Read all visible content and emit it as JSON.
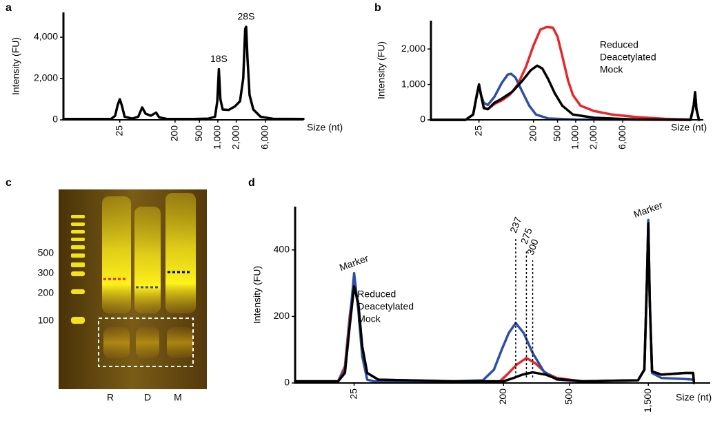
{
  "chart_data": [
    {
      "type": "line",
      "panel_label": "a",
      "y_label": "Intensity (FU)",
      "x_label": "Size (nt)",
      "x_scale": "log",
      "xlim": [
        3,
        25000
      ],
      "ylim": [
        0,
        5200
      ],
      "xticks": [
        25,
        200,
        500,
        {
          "value": 1000,
          "label": "1,000"
        },
        {
          "value": 2000,
          "label": "2,000"
        },
        {
          "value": 6000,
          "label": "6,000"
        }
      ],
      "yticks": [
        0,
        {
          "value": 2000,
          "label": "2,000"
        },
        {
          "value": 4000,
          "label": "4,000"
        }
      ],
      "grid": false,
      "series": [
        {
          "color": "#000000",
          "x": [
            3,
            10,
            18,
            21,
            23,
            25,
            27,
            30,
            40,
            50,
            58,
            66,
            80,
            98,
            110,
            150,
            400,
            700,
            900,
            980,
            1040,
            1100,
            1200,
            1500,
            1900,
            2300,
            2600,
            2800,
            2900,
            3050,
            3300,
            3800,
            5000,
            8000,
            25000
          ],
          "values": [
            40,
            40,
            40,
            200,
            700,
            1000,
            700,
            150,
            60,
            150,
            600,
            300,
            200,
            350,
            120,
            40,
            40,
            60,
            150,
            900,
            2450,
            1000,
            500,
            480,
            650,
            900,
            2000,
            4400,
            4500,
            3000,
            1200,
            500,
            150,
            50,
            40
          ]
        }
      ],
      "annotations": [
        {
          "text": "18S",
          "x": 1040
        },
        {
          "text": "28S",
          "x": 2900
        }
      ]
    },
    {
      "type": "line",
      "panel_label": "b",
      "y_label": "Intensity (FU)",
      "x_label": "Size (nt)",
      "x_scale": "log",
      "xlim": [
        4,
        130000
      ],
      "ylim": [
        0,
        2800
      ],
      "xticks": [
        25,
        200,
        500,
        {
          "value": 1000,
          "label": "1,000"
        },
        {
          "value": 2000,
          "label": "2,000"
        },
        {
          "value": 6000,
          "label": "6,000"
        }
      ],
      "yticks": [
        0,
        {
          "value": 1000,
          "label": "1,000"
        },
        {
          "value": 2000,
          "label": "2,000"
        }
      ],
      "grid": false,
      "legend": "upper right",
      "series": [
        {
          "name": "Reduced",
          "color": "#e8262b",
          "x": [
            4,
            15,
            20,
            23,
            25,
            27,
            30,
            35,
            45,
            60,
            80,
            110,
            150,
            200,
            260,
            330,
            420,
            500,
            600,
            750,
            900,
            1200,
            2000,
            4000,
            10000,
            30000,
            80000,
            90000,
            95000,
            100000,
            110000
          ],
          "values": [
            0,
            0,
            150,
            700,
            1000,
            700,
            350,
            300,
            450,
            550,
            700,
            1000,
            1500,
            2100,
            2550,
            2620,
            2600,
            2350,
            1800,
            1100,
            700,
            400,
            250,
            150,
            80,
            30,
            10,
            400,
            780,
            300,
            0
          ]
        },
        {
          "name": "Deacetylated",
          "color": "#2e4fa3",
          "x": [
            4,
            15,
            20,
            23,
            25,
            27,
            30,
            35,
            45,
            60,
            75,
            85,
            100,
            130,
            170,
            220,
            350,
            1000,
            80000,
            90000,
            95000,
            100000,
            110000
          ],
          "values": [
            0,
            0,
            150,
            700,
            980,
            700,
            480,
            420,
            650,
            1050,
            1280,
            1300,
            1200,
            800,
            400,
            150,
            40,
            10,
            0,
            380,
            760,
            300,
            0
          ]
        },
        {
          "name": "Mock",
          "color": "#000000",
          "x": [
            4,
            15,
            20,
            23,
            25,
            27,
            30,
            35,
            45,
            60,
            90,
            130,
            180,
            230,
            280,
            350,
            450,
            600,
            900,
            2000,
            10000,
            80000,
            90000,
            95000,
            100000,
            110000
          ],
          "values": [
            0,
            0,
            150,
            700,
            1000,
            700,
            330,
            300,
            480,
            600,
            800,
            1100,
            1400,
            1530,
            1450,
            1150,
            750,
            400,
            150,
            60,
            10,
            0,
            400,
            780,
            300,
            0
          ]
        }
      ]
    },
    {
      "type": "line",
      "panel_label": "d",
      "y_label": "Intensity (FU)",
      "x_label": "Size (nt)",
      "x_scale": "log",
      "xlim": [
        11,
        3550
      ],
      "ylim": [
        0,
        530
      ],
      "xticks": [
        25,
        200,
        500,
        {
          "value": 1500,
          "label": "1,500"
        }
      ],
      "yticks": [
        0,
        200,
        400
      ],
      "grid": false,
      "legend": "center left",
      "series": [
        {
          "name": "Reduced",
          "color": "#e8262b",
          "x": [
            11,
            20,
            22,
            23.5,
            25,
            26.5,
            28,
            30,
            35,
            100,
            190,
            210,
            240,
            275,
            310,
            360,
            420,
            600,
            1300,
            1420,
            1470,
            1500,
            1530,
            1580,
            1800,
            2500,
            2800,
            2830
          ],
          "values": [
            5,
            5,
            50,
            200,
            300,
            230,
            100,
            30,
            10,
            5,
            5,
            25,
            55,
            75,
            60,
            30,
            15,
            5,
            8,
            40,
            300,
            485,
            250,
            35,
            25,
            30,
            30,
            0
          ]
        },
        {
          "name": "Deacetylated",
          "color": "#2e4fa3",
          "x": [
            11,
            20,
            22,
            23.5,
            25,
            26.5,
            28,
            30,
            33,
            100,
            150,
            175,
            195,
            215,
            237,
            265,
            300,
            350,
            420,
            600,
            1300,
            1420,
            1470,
            1500,
            1530,
            1580,
            1800,
            2500,
            2800
          ],
          "values": [
            5,
            5,
            40,
            180,
            330,
            220,
            80,
            10,
            5,
            5,
            8,
            40,
            100,
            150,
            180,
            150,
            90,
            35,
            10,
            5,
            8,
            40,
            300,
            490,
            250,
            30,
            15,
            12,
            10
          ]
        },
        {
          "name": "Mock",
          "color": "#000000",
          "x": [
            11,
            20,
            22,
            23.5,
            25,
            26.5,
            28,
            30,
            35,
            100,
            200,
            230,
            260,
            300,
            360,
            420,
            600,
            1300,
            1420,
            1470,
            1500,
            1530,
            1580,
            1800,
            2500,
            2800,
            2830
          ],
          "values": [
            5,
            5,
            30,
            170,
            290,
            240,
            110,
            30,
            10,
            5,
            5,
            15,
            25,
            32,
            25,
            12,
            5,
            8,
            40,
            300,
            480,
            250,
            35,
            25,
            30,
            30,
            0
          ]
        }
      ],
      "annotations": [
        {
          "text": "Marker",
          "x": 25
        },
        {
          "text": "Marker",
          "x": 1500
        }
      ],
      "peak_markers": [
        {
          "x": 237,
          "color": "#2e4fa3"
        },
        {
          "x": 275,
          "color": "#e8262b"
        },
        {
          "x": 300,
          "color": "#000000"
        }
      ]
    }
  ],
  "gel": {
    "panel_label": "c",
    "size_labels": [
      "500",
      "300",
      "200",
      "100"
    ],
    "lane_labels": [
      {
        "text": "R",
        "color": "#e8262b"
      },
      {
        "text": "D",
        "color": "#2e4fa3"
      },
      {
        "text": "M",
        "color": "#000000"
      }
    ]
  }
}
